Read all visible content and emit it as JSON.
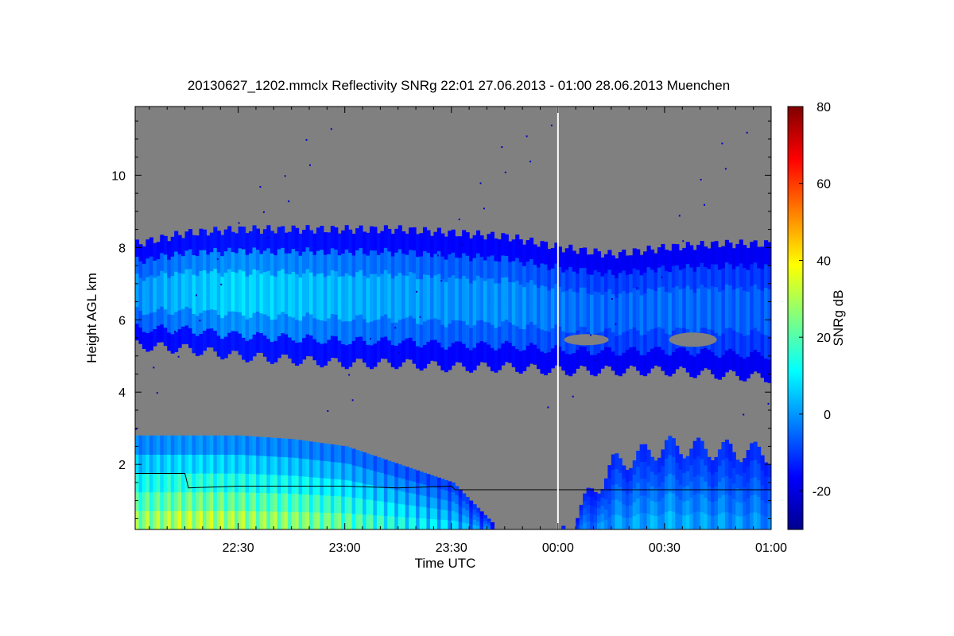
{
  "chart_data": {
    "type": "heatmap",
    "title": "20130627_1202.mmclx Reflectivity SNRg   22:01 27.06.2013 - 01:00 28.06.2013 Muenchen",
    "xlabel": "Time UTC",
    "ylabel": "Height AGL km",
    "x_ticks": [
      "22:30",
      "23:00",
      "23:30",
      "00:00",
      "00:30",
      "01:00"
    ],
    "x_tick_minutes": [
      30,
      60,
      90,
      120,
      150,
      180
    ],
    "xlim_minutes": [
      1,
      180
    ],
    "y_ticks": [
      2,
      4,
      6,
      8,
      10
    ],
    "ylim": [
      0.2,
      11.9
    ],
    "colorbar": {
      "label": "SNRg dB",
      "ticks": [
        -20,
        0,
        20,
        40,
        60,
        80
      ],
      "range": [
        -30,
        80
      ],
      "colormap": [
        "#00008f",
        "#0000ff",
        "#0080ff",
        "#00ffff",
        "#80ff80",
        "#ffff00",
        "#ff8000",
        "#ff0000",
        "#800000"
      ]
    },
    "background_color": "#808080",
    "marker_line_time": "00:00",
    "layers": [
      {
        "name": "upper-cloud",
        "time": [
          1,
          15,
          30,
          45,
          60,
          75,
          90,
          105,
          120,
          135,
          150,
          165,
          180
        ],
        "top_km": [
          8.1,
          8.4,
          8.5,
          8.5,
          8.5,
          8.5,
          8.4,
          8.3,
          8.0,
          7.8,
          8.0,
          8.1,
          8.1
        ],
        "base_km": [
          5.3,
          5.2,
          5.0,
          4.9,
          4.8,
          4.8,
          4.7,
          4.7,
          4.6,
          4.6,
          4.6,
          4.5,
          4.4
        ],
        "core_db": [
          0,
          5,
          8,
          6,
          4,
          2,
          0,
          0,
          -3,
          -5,
          -4,
          -5,
          -6
        ]
      },
      {
        "name": "lower-precipitation",
        "time": [
          1,
          15,
          30,
          45,
          60,
          75,
          90,
          105,
          120,
          135,
          150,
          165,
          180
        ],
        "top_km": [
          2.8,
          2.8,
          2.8,
          2.7,
          2.5,
          2.0,
          1.5,
          0.0,
          0.0,
          2.0,
          2.5,
          2.4,
          2.3
        ],
        "core_db": [
          25,
          30,
          28,
          25,
          20,
          12,
          5,
          -10,
          -10,
          0,
          2,
          0,
          -2
        ]
      }
    ],
    "black_line": {
      "time": [
        1,
        15,
        16,
        30,
        45,
        60,
        75,
        90,
        91,
        120,
        180
      ],
      "height_km": [
        1.75,
        1.75,
        1.35,
        1.4,
        1.4,
        1.4,
        1.35,
        1.4,
        1.3,
        1.3,
        1.3
      ]
    }
  }
}
